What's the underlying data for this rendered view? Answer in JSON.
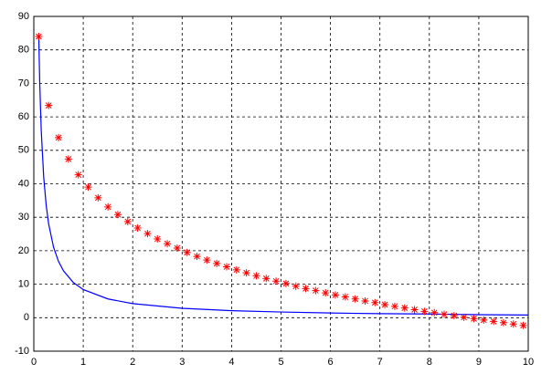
{
  "chart_data": {
    "type": "line",
    "grid": true,
    "xlim": [
      0,
      10
    ],
    "xticks": [
      0,
      1,
      2,
      3,
      4,
      5,
      6,
      7,
      8,
      9,
      10
    ],
    "ylim": [
      -10,
      90
    ],
    "yticks": [
      -10,
      0,
      10,
      20,
      30,
      40,
      50,
      60,
      70,
      80,
      90
    ],
    "series": [
      {
        "color": "#0000ff",
        "marker": "none",
        "x": [
          0.1,
          0.12,
          0.15,
          0.2,
          0.25,
          0.3,
          0.4,
          0.5,
          0.6,
          0.8,
          1,
          1.5,
          2,
          3,
          4,
          5,
          6,
          7,
          8,
          9,
          10
        ],
        "values": [
          84,
          70,
          56,
          42,
          33.6,
          28,
          21,
          16.8,
          14,
          10.5,
          8.4,
          5.6,
          4.2,
          2.8,
          2.1,
          1.7,
          1.4,
          1.2,
          1.1,
          0.9,
          0.8
        ]
      },
      {
        "color": "#ff0000",
        "marker": "star",
        "x": [
          0.1,
          0.3,
          0.5,
          0.7,
          0.9,
          1.1,
          1.3,
          1.5,
          1.7,
          1.9,
          2.1,
          2.3,
          2.5,
          2.7,
          2.9,
          3.1,
          3.3,
          3.5,
          3.7,
          3.9,
          4.1,
          4.3,
          4.5,
          4.7,
          4.9,
          5.1,
          5.3,
          5.5,
          5.7,
          5.9,
          6.1,
          6.3,
          6.5,
          6.7,
          6.9,
          7.1,
          7.3,
          7.5,
          7.7,
          7.9,
          8.1,
          8.3,
          8.5,
          8.7,
          8.9,
          9.1,
          9.3,
          9.5,
          9.7,
          9.9
        ],
        "values": [
          84.0,
          63.4,
          53.8,
          47.4,
          42.7,
          39.0,
          35.8,
          33.1,
          30.8,
          28.7,
          26.8,
          25.1,
          23.5,
          22.1,
          20.8,
          19.5,
          18.3,
          17.2,
          16.2,
          15.2,
          14.3,
          13.4,
          12.5,
          11.7,
          10.9,
          10.2,
          9.4,
          8.7,
          8.1,
          7.4,
          6.8,
          6.2,
          5.6,
          5.0,
          4.5,
          3.9,
          3.4,
          2.9,
          2.4,
          1.9,
          1.5,
          1.0,
          0.6,
          0.1,
          -0.3,
          -0.7,
          -1.1,
          -1.5,
          -1.9,
          -2.3
        ]
      }
    ]
  }
}
